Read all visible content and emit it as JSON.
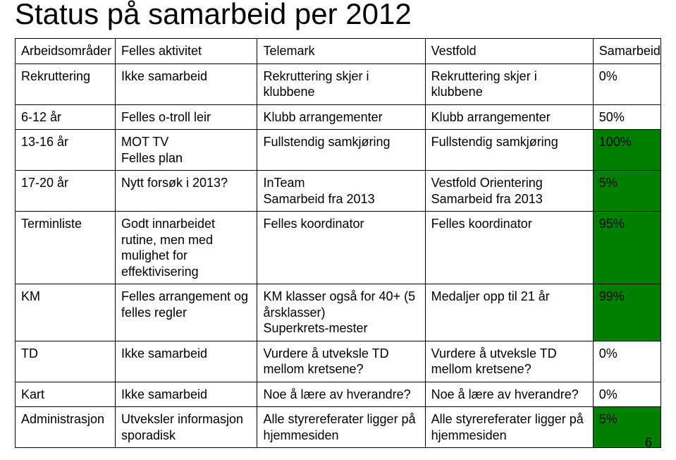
{
  "title": "Status på samarbeid per 2012",
  "page_number": "6",
  "colors": {
    "background": "#ffffff",
    "text": "#000000",
    "border": "#000000",
    "highlight_100": "#008000",
    "highlight_95_99": "#008000",
    "highlight_5": "#008000"
  },
  "typography": {
    "title_fontsize": 42,
    "cell_fontsize": 18,
    "font_family": "Arial"
  },
  "table": {
    "type": "table",
    "columns": [
      "Arbeidsområder",
      "Felles aktivitet",
      "Telemark",
      "Vestfold",
      "Samarbeid"
    ],
    "column_widths_pct": [
      15.5,
      22,
      26,
      26,
      10.5
    ],
    "rows": [
      {
        "cells": [
          {
            "lines": [
              "Rekruttering"
            ]
          },
          {
            "lines": [
              "Ikke samarbeid"
            ]
          },
          {
            "lines": [
              "Rekruttering skjer i klubbene"
            ]
          },
          {
            "lines": [
              "Rekruttering skjer i klubbene"
            ]
          },
          {
            "lines": [
              "0%"
            ]
          }
        ]
      },
      {
        "cells": [
          {
            "lines": [
              "6-12 år"
            ]
          },
          {
            "lines": [
              "Felles o-troll leir"
            ]
          },
          {
            "lines": [
              "Klubb arrangementer"
            ]
          },
          {
            "lines": [
              "Klubb arrangementer"
            ]
          },
          {
            "lines": [
              "50%"
            ]
          }
        ]
      },
      {
        "cells": [
          {
            "lines": [
              "13-16 år"
            ]
          },
          {
            "lines": [
              "MOT TV",
              "Felles plan"
            ]
          },
          {
            "lines": [
              "Fullstendig samkjøring"
            ]
          },
          {
            "lines": [
              "Fullstendig samkjøring"
            ]
          },
          {
            "lines": [
              "100%"
            ],
            "bg": "#008000"
          }
        ]
      },
      {
        "cells": [
          {
            "lines": [
              "17-20 år"
            ]
          },
          {
            "lines": [
              "Nytt forsøk i 2013?"
            ]
          },
          {
            "lines": [
              "InTeam",
              "Samarbeid fra 2013"
            ]
          },
          {
            "lines": [
              "Vestfold Orientering",
              "Samarbeid fra 2013"
            ]
          },
          {
            "lines": [
              "5%"
            ],
            "bg": "#008000"
          }
        ]
      },
      {
        "cells": [
          {
            "lines": [
              "Terminliste"
            ]
          },
          {
            "lines": [
              "Godt innarbeidet rutine, men med mulighet for effektivisering"
            ]
          },
          {
            "lines": [
              "Felles koordinator"
            ]
          },
          {
            "lines": [
              "Felles koordinator"
            ]
          },
          {
            "lines": [
              "95%"
            ],
            "bg": "#008000"
          }
        ]
      },
      {
        "cells": [
          {
            "lines": [
              "KM"
            ]
          },
          {
            "lines": [
              "Felles arrangement og felles regler"
            ]
          },
          {
            "lines": [
              "KM klasser også for 40+ (5 årsklasser)",
              "Superkrets-mester"
            ]
          },
          {
            "lines": [
              "Medaljer opp til 21 år"
            ]
          },
          {
            "lines": [
              "99%"
            ],
            "bg": "#008000"
          }
        ]
      },
      {
        "cells": [
          {
            "lines": [
              "TD"
            ]
          },
          {
            "lines": [
              "Ikke samarbeid"
            ]
          },
          {
            "lines": [
              "Vurdere å utveksle TD mellom kretsene?"
            ]
          },
          {
            "lines": [
              "Vurdere å utveksle TD mellom kretsene?"
            ]
          },
          {
            "lines": [
              "0%"
            ]
          }
        ]
      },
      {
        "cells": [
          {
            "lines": [
              "Kart"
            ]
          },
          {
            "lines": [
              "Ikke samarbeid"
            ]
          },
          {
            "lines": [
              "Noe å lære av hverandre?"
            ]
          },
          {
            "lines": [
              "Noe å lære av hverandre?"
            ]
          },
          {
            "lines": [
              "0%"
            ]
          }
        ]
      },
      {
        "cells": [
          {
            "lines": [
              "Administrasjon"
            ]
          },
          {
            "lines": [
              "Utveksler informasjon sporadisk"
            ]
          },
          {
            "lines": [
              "Alle styrereferater ligger på hjemmesiden"
            ]
          },
          {
            "lines": [
              "Alle styrereferater ligger på hjemmesiden"
            ]
          },
          {
            "lines": [
              "5%"
            ],
            "bg": "#008000"
          }
        ]
      }
    ]
  }
}
